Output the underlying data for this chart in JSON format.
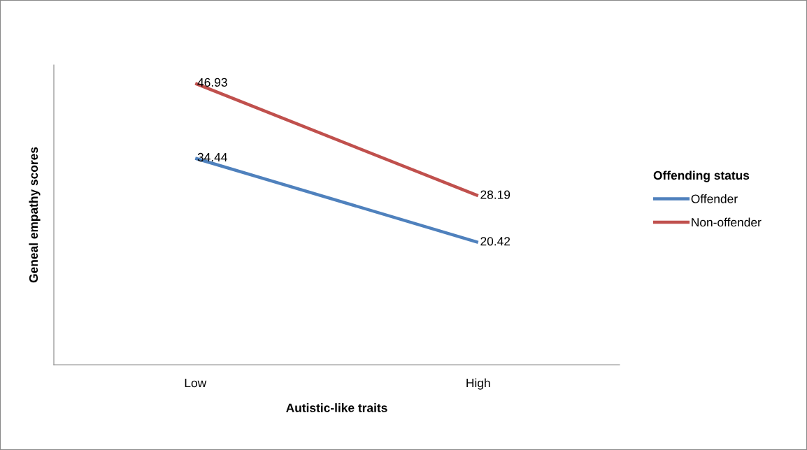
{
  "chart_data": {
    "type": "line",
    "xlabel": "Autistic-like traits",
    "ylabel": "Geneal empathy scores",
    "legend_title": "Offending status",
    "categories": [
      "Low",
      "High"
    ],
    "series": [
      {
        "name": "Offender",
        "color": "#4f81bd",
        "values": [
          34.44,
          20.42
        ]
      },
      {
        "name": "Non-offender",
        "color": "#c0504d",
        "values": [
          46.93,
          28.19
        ]
      }
    ],
    "ylim": [
      0,
      50
    ],
    "tick_labels": "x",
    "data_labels": true,
    "legend": "right",
    "grid": false,
    "marker": "none",
    "line_style": "solid"
  }
}
